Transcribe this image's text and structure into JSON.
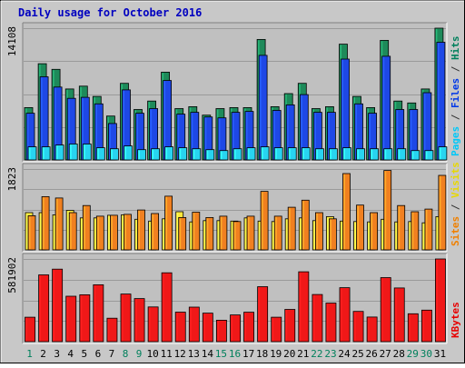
{
  "chart_data": {
    "type": "bar",
    "title": "Daily usage for October 2016",
    "categories": [
      "1",
      "2",
      "3",
      "4",
      "5",
      "6",
      "7",
      "8",
      "9",
      "10",
      "11",
      "12",
      "13",
      "14",
      "15",
      "16",
      "17",
      "18",
      "19",
      "20",
      "21",
      "22",
      "23",
      "24",
      "25",
      "26",
      "27",
      "28",
      "29",
      "30",
      "31"
    ],
    "weekend_days": [
      "1",
      "8",
      "9",
      "15",
      "16",
      "22",
      "23",
      "29",
      "30"
    ],
    "panels": [
      {
        "id": "hits-files-pages",
        "ylabel_parts": [
          {
            "text": "Pages",
            "color": "#00c8f8"
          },
          {
            "text": " / ",
            "color": "#333333"
          },
          {
            "text": "Files",
            "color": "#0038e8"
          },
          {
            "text": " / ",
            "color": "#333333"
          },
          {
            "text": "Hits",
            "color": "#00805c"
          }
        ],
        "max_label": "14108",
        "ymax": 14108,
        "series": [
          {
            "name": "Hits",
            "color": "#1e8a5a",
            "values": [
              5600,
              10300,
              9700,
              7600,
              7900,
              6800,
              4700,
              8200,
              5400,
              6300,
              9400,
              5500,
              5700,
              4800,
              5500,
              5600,
              5600,
              12900,
              5700,
              7100,
              8200,
              5500,
              5700,
              12400,
              6800,
              5600,
              12800,
              6300,
              6100,
              7600,
              14108
            ]
          },
          {
            "name": "Files",
            "color": "#1e48e6",
            "values": [
              5000,
              8900,
              7800,
              6600,
              6700,
              6000,
              3900,
              7500,
              5000,
              5500,
              8500,
              4900,
              5100,
              4600,
              4500,
              5100,
              5200,
              11200,
              5300,
              5900,
              7000,
              5100,
              5100,
              10800,
              6000,
              5000,
              11100,
              5400,
              5400,
              7200,
              12600
            ]
          },
          {
            "name": "Pages",
            "color": "#28d4f0",
            "values": [
              1400,
              1400,
              1600,
              1700,
              1700,
              1300,
              1200,
              1500,
              1100,
              1200,
              1400,
              1300,
              1200,
              1100,
              1000,
              1200,
              1300,
              1400,
              1300,
              1300,
              1300,
              1200,
              1200,
              1300,
              1200,
              1200,
              1200,
              1200,
              1000,
              1000,
              1400
            ]
          }
        ]
      },
      {
        "id": "visits-sites",
        "ylabel_parts": [
          {
            "text": "Sites",
            "color": "#f08000"
          },
          {
            "text": " / ",
            "color": "#333333"
          },
          {
            "text": "Visits",
            "color": "#e8d800"
          }
        ],
        "max_label": "1823",
        "ymax": 1823,
        "series": [
          {
            "name": "Visits",
            "color": "#ffe83c",
            "values": [
              840,
              840,
              790,
              890,
              720,
              720,
              780,
              790,
              690,
              650,
              700,
              860,
              630,
              660,
              660,
              650,
              720,
              650,
              640,
              700,
              720,
              660,
              750,
              650,
              640,
              630,
              690,
              630,
              640,
              610,
              750
            ]
          },
          {
            "name": "Sites",
            "color": "#f08020",
            "values": [
              770,
              1200,
              1170,
              840,
              1000,
              760,
              780,
              800,
              900,
              820,
              1210,
              730,
              850,
              730,
              760,
              640,
              760,
              1320,
              760,
              960,
              1120,
              840,
              700,
              1720,
              1010,
              840,
              1790,
              1000,
              860,
              920,
              1680
            ]
          }
        ]
      },
      {
        "id": "kbytes",
        "ylabel_parts": [
          {
            "text": "KBytes",
            "color": "#e80000"
          }
        ],
        "max_label": "581902",
        "ymax": 581902,
        "series": [
          {
            "name": "KBytes",
            "color": "#f01818",
            "values": [
              172000,
              470000,
              510000,
              320000,
              330000,
              400000,
              165000,
              335000,
              303000,
              244000,
              485000,
              208000,
              243000,
              201000,
              151000,
              188000,
              207000,
              387000,
              172000,
              227000,
              492000,
              332000,
              272000,
              380000,
              213000,
              173000,
              451000,
              378000,
              196000,
              222000,
              581902
            ]
          }
        ]
      }
    ]
  }
}
